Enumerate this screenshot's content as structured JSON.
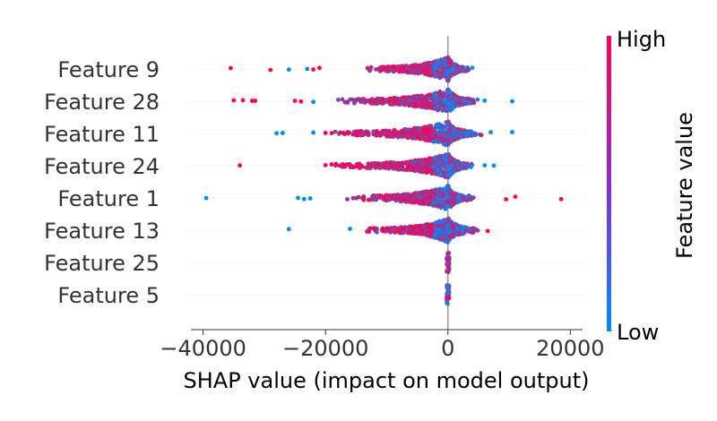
{
  "chart_data": {
    "type": "beeswarm",
    "title": "",
    "xlabel": "SHAP value (impact on model output)",
    "xlim": [
      -42000,
      22000
    ],
    "xticks": [
      -40000,
      -20000,
      0,
      20000
    ],
    "xtick_labels": [
      "−40000",
      "−20000",
      "0",
      "20000"
    ],
    "colorbar": {
      "label": "Feature value",
      "high_label": "High",
      "low_label": "Low",
      "low_color": "#008bfb",
      "high_color": "#ff0051"
    },
    "features": [
      {
        "name": "Feature 9",
        "spread_neg": 14000,
        "spread_pos": 3500,
        "outliers": [
          [
            -35500,
            1
          ],
          [
            -29000,
            1
          ],
          [
            -26000,
            0
          ],
          [
            -23000,
            0
          ],
          [
            -22000,
            1
          ],
          [
            -21000,
            1
          ],
          [
            4000,
            0
          ]
        ]
      },
      {
        "name": "Feature 28",
        "spread_neg": 18000,
        "spread_pos": 5000,
        "outliers": [
          [
            -35000,
            1
          ],
          [
            -33500,
            1
          ],
          [
            -32000,
            1
          ],
          [
            -31500,
            1
          ],
          [
            -25000,
            1
          ],
          [
            -24000,
            1
          ],
          [
            -22000,
            0
          ],
          [
            6000,
            0
          ],
          [
            10500,
            0
          ]
        ]
      },
      {
        "name": "Feature 11",
        "spread_neg": 19000,
        "spread_pos": 5500,
        "outliers": [
          [
            -28000,
            0
          ],
          [
            -27000,
            0
          ],
          [
            -22000,
            0
          ],
          [
            -20000,
            1
          ],
          [
            7000,
            0
          ],
          [
            10500,
            0
          ]
        ]
      },
      {
        "name": "Feature 24",
        "spread_neg": 19000,
        "spread_pos": 4500,
        "outliers": [
          [
            -34000,
            1
          ],
          [
            -20000,
            1
          ],
          [
            -19000,
            1
          ],
          [
            6000,
            0
          ],
          [
            7500,
            0
          ]
        ]
      },
      {
        "name": "Feature 1",
        "spread_neg": 17000,
        "spread_pos": 4500,
        "outliers": [
          [
            -39500,
            0
          ],
          [
            -24500,
            0
          ],
          [
            -23500,
            0
          ],
          [
            -22500,
            0
          ],
          [
            9500,
            1
          ],
          [
            11000,
            1
          ],
          [
            18500,
            1
          ]
        ]
      },
      {
        "name": "Feature 13",
        "spread_neg": 14000,
        "spread_pos": 5500,
        "outliers": [
          [
            -26000,
            0
          ],
          [
            -16000,
            0
          ],
          [
            6500,
            1
          ]
        ]
      },
      {
        "name": "Feature 25",
        "spread_neg": 0,
        "spread_pos": 0,
        "outliers": []
      },
      {
        "name": "Feature 5",
        "spread_neg": 0,
        "spread_pos": 0,
        "outliers": []
      }
    ]
  }
}
